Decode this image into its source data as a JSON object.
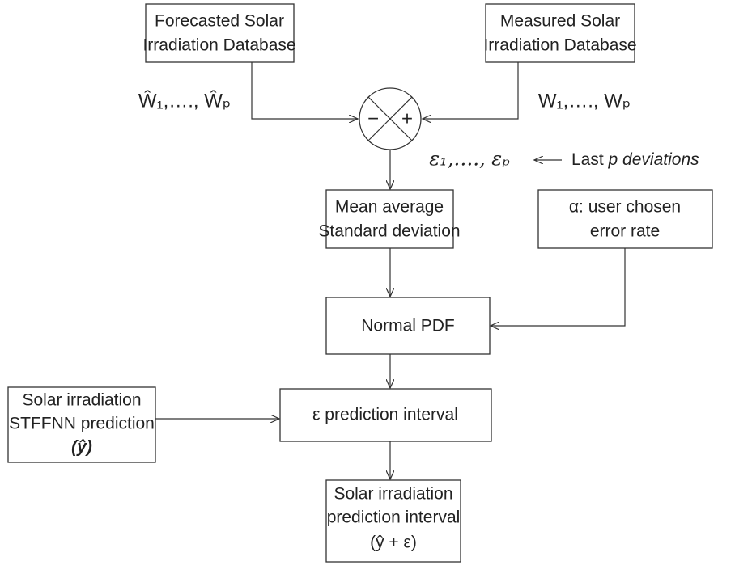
{
  "nodes": [
    {
      "id": "forecasted",
      "lines": [
        "Forecasted Solar",
        "Irradiation Database"
      ]
    },
    {
      "id": "measured",
      "lines": [
        "Measured Solar",
        "Irradiation Database"
      ]
    },
    {
      "id": "mean",
      "lines": [
        "Mean average",
        "Standard deviation"
      ]
    },
    {
      "id": "alpha",
      "lines": [
        "α: user chosen",
        "error rate"
      ]
    },
    {
      "id": "normal",
      "lines": [
        "Normal PDF"
      ]
    },
    {
      "id": "stffnn",
      "lines": [
        "Solar irradiation",
        "STFFNN prediction",
        "(ŷ)"
      ]
    },
    {
      "id": "interval",
      "lines": [
        "ε prediction interval"
      ]
    },
    {
      "id": "final",
      "lines": [
        "Solar irradiation",
        "prediction interval",
        "(ŷ + ε)"
      ]
    }
  ],
  "labels": {
    "forecast_inputs": "Ŵ₁,…., Ŵₚ",
    "measured_inputs": "W₁,…., Wₚ",
    "deviations": "ε₁,…., εₚ",
    "deviations_note_plain": "Last",
    "deviations_note_italic": "p deviations",
    "minus": "−",
    "plus": "+"
  }
}
